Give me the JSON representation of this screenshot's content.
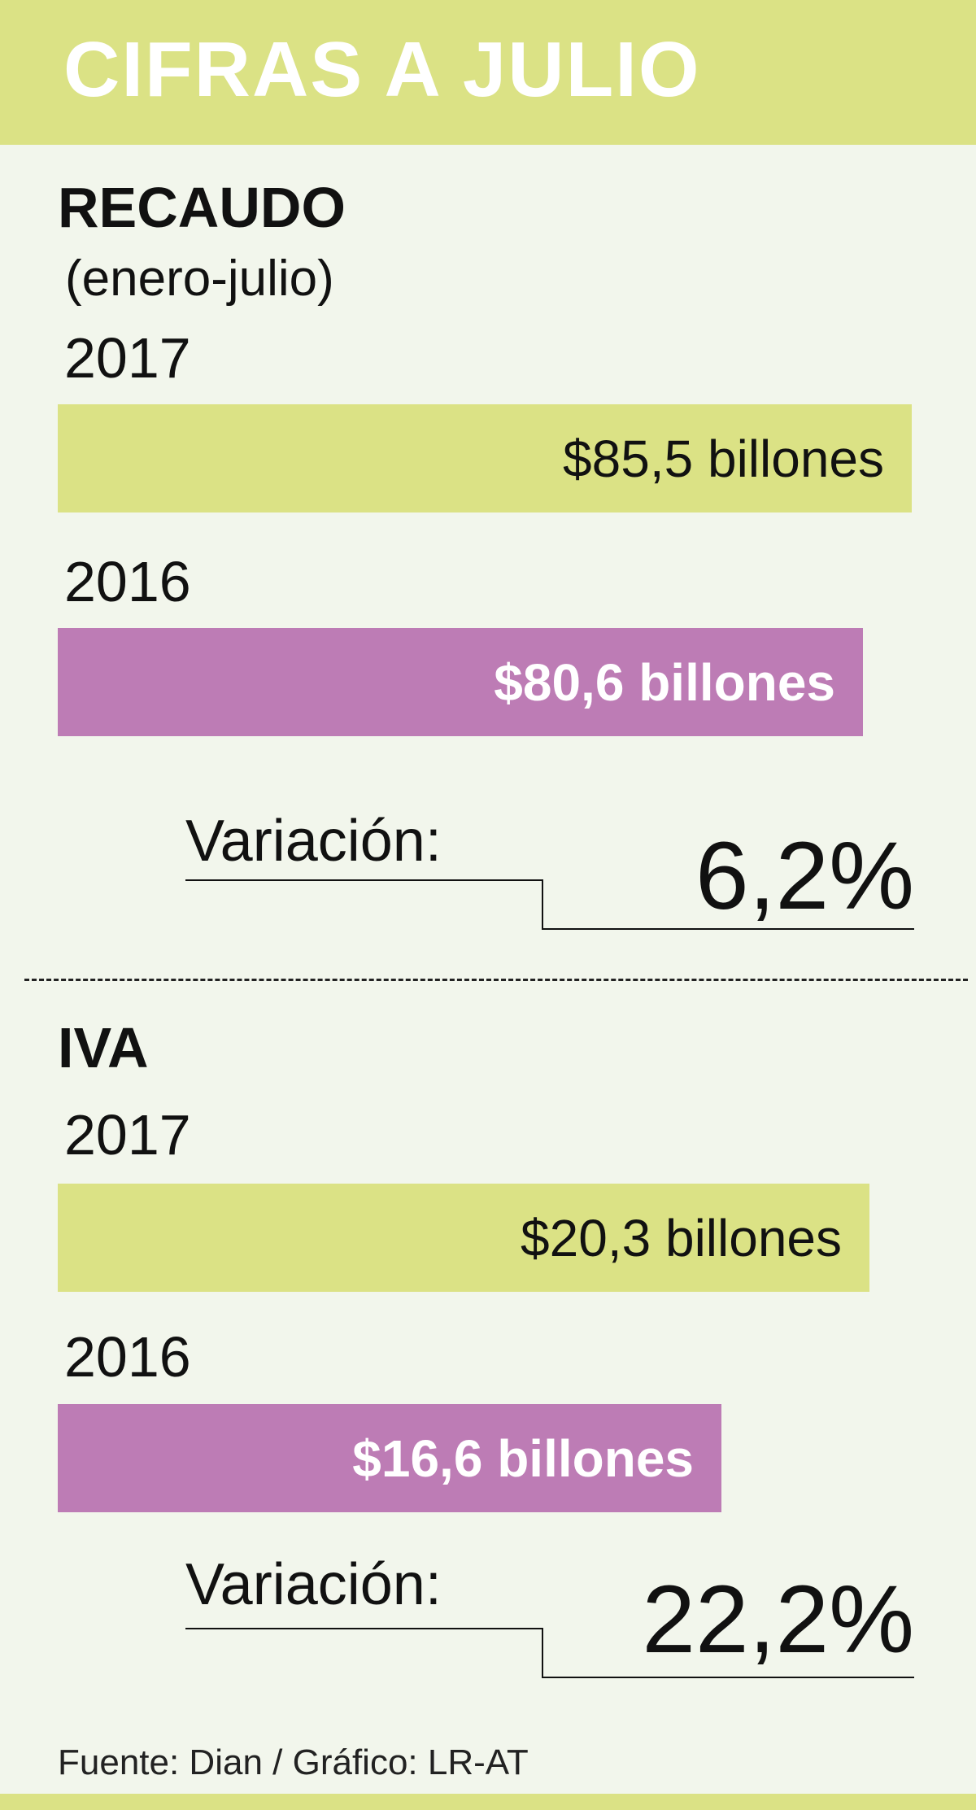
{
  "header": {
    "title": "CIFRAS A JULIO"
  },
  "recaudo": {
    "title": "RECAUDO",
    "subtitle": "(enero-julio)",
    "year_2017": "2017",
    "label_2017": "$85,5 billones",
    "year_2016": "2016",
    "label_2016": "$80,6 billones",
    "variation_label": "Variación:",
    "variation_value": "6,2%"
  },
  "iva": {
    "title": "IVA",
    "year_2017": "2017",
    "label_2017": "$20,3 billones",
    "year_2016": "2016",
    "label_2016": "$16,6 billones",
    "variation_label": "Variación:",
    "variation_value": "22,2%"
  },
  "source": "Fuente: Dian / Gráfico: LR-AT",
  "colors": {
    "bar_2017": "#dbe285",
    "bar_2016": "#bd7cb5",
    "background": "#f2f6ec"
  },
  "chart_data": [
    {
      "type": "bar",
      "title": "RECAUDO",
      "subtitle": "(enero-julio)",
      "categories": [
        "2017",
        "2016"
      ],
      "values": [
        85.5,
        80.6
      ],
      "unit": "billones",
      "data_labels": [
        "$85,5 billones",
        "$80,6 billones"
      ],
      "variation": "6,2%"
    },
    {
      "type": "bar",
      "title": "IVA",
      "categories": [
        "2017",
        "2016"
      ],
      "values": [
        20.3,
        16.6
      ],
      "unit": "billones",
      "data_labels": [
        "$20,3 billones",
        "$16,6 billones"
      ],
      "variation": "22,2%"
    }
  ]
}
